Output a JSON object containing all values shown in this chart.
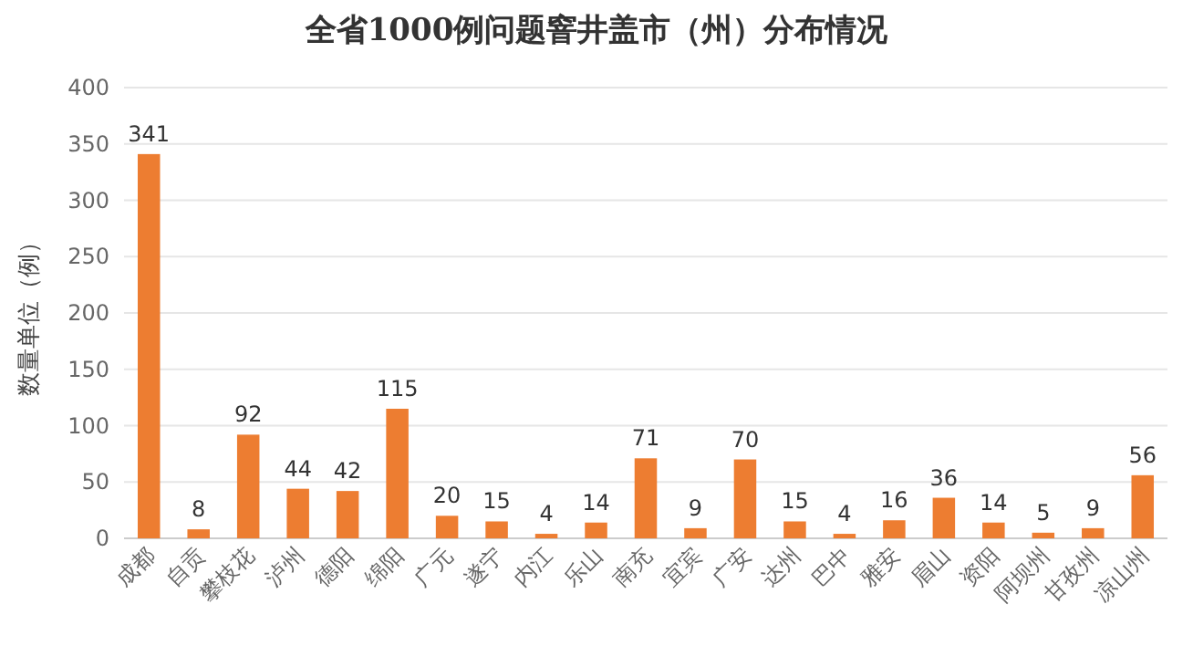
{
  "chart_data": {
    "type": "bar",
    "title": "全省1000例问题窨井盖市（州）分布情况",
    "ylabel": "数量单位（例）",
    "categories": [
      "成都",
      "自贡",
      "攀枝花",
      "泸州",
      "德阳",
      "绵阳",
      "广元",
      "遂宁",
      "内江",
      "乐山",
      "南充",
      "宜宾",
      "广安",
      "达州",
      "巴中",
      "雅安",
      "眉山",
      "资阳",
      "阿坝州",
      "甘孜州",
      "凉山州"
    ],
    "values": [
      341,
      8,
      92,
      44,
      42,
      115,
      20,
      15,
      4,
      14,
      71,
      9,
      70,
      15,
      4,
      16,
      36,
      14,
      5,
      9,
      56
    ],
    "color": "#ed7d31",
    "ylim": [
      0,
      400
    ],
    "yticks": [
      0,
      50,
      100,
      150,
      200,
      250,
      300,
      350,
      400
    ],
    "grid": "y",
    "data_labels": true
  }
}
